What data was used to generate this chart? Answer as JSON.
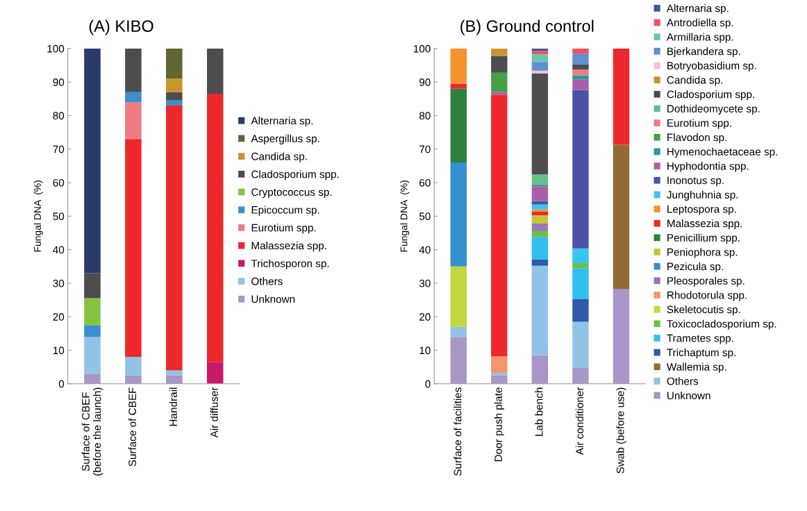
{
  "chart_data": [
    {
      "type": "bar",
      "stacked": true,
      "title": "(A) KIBO",
      "ylabel": "Fungal DNA  (%)",
      "legend": "right",
      "grid": false,
      "categories": [
        "Surface of CBEF\n(before the launch)",
        "Surface of CBEF",
        "Handrail",
        "Air diffuser"
      ],
      "ylim": [
        0,
        100
      ],
      "yticks": [
        0,
        10,
        20,
        30,
        40,
        50,
        60,
        70,
        80,
        90,
        100
      ],
      "series": [
        {
          "name": "Unknown",
          "color": "#a896c8",
          "values": [
            3,
            2.5,
            2.5,
            null
          ]
        },
        {
          "name": "Others",
          "color": "#90c3e6",
          "values": [
            11,
            5.5,
            1.5,
            null
          ]
        },
        {
          "name": "Trichosporon sp.",
          "color": "#c81a6a",
          "values": [
            null,
            null,
            null,
            6.5
          ]
        },
        {
          "name": "Malassezia spp.",
          "color": "#ec282c",
          "values": [
            null,
            65,
            79,
            80
          ]
        },
        {
          "name": "Eurotium spp.",
          "color": "#f07a82",
          "values": [
            null,
            11,
            null,
            null
          ]
        },
        {
          "name": "Epicoccum sp.",
          "color": "#3a8fd0",
          "values": [
            3.5,
            3,
            1.5,
            null
          ]
        },
        {
          "name": "Cryptococcus sp.",
          "color": "#86c440",
          "values": [
            8,
            null,
            null,
            null
          ]
        },
        {
          "name": "Cladosporium spp.",
          "color": "#4d4d4f",
          "values": [
            7.5,
            13,
            2.5,
            13.5
          ]
        },
        {
          "name": "Candida sp.",
          "color": "#c8952e",
          "values": [
            null,
            null,
            4,
            null
          ]
        },
        {
          "name": "Aspergillus sp.",
          "color": "#636434",
          "values": [
            null,
            null,
            9,
            null
          ]
        },
        {
          "name": "Alternaria sp.",
          "color": "#2b3a67",
          "values": [
            67,
            null,
            null,
            null
          ]
        }
      ]
    },
    {
      "type": "bar",
      "stacked": true,
      "title": "(B) Ground control",
      "ylabel": "Fungal DNA  (%)",
      "legend": "right",
      "grid": false,
      "categories": [
        "Surface of facilities",
        "Door push plate",
        "Lab bench",
        "Air conditioner",
        "Swab (before use)"
      ],
      "ylim": [
        0,
        100
      ],
      "yticks": [
        0,
        10,
        20,
        30,
        40,
        50,
        60,
        70,
        80,
        90,
        100
      ],
      "series": [
        {
          "name": "Unknown",
          "color": "#a896c8",
          "values": [
            14,
            2.5,
            8.5,
            4.7,
            28.3
          ]
        },
        {
          "name": "Others",
          "color": "#90c3e6",
          "values": [
            3,
            0.7,
            26.7,
            13.8,
            null
          ]
        },
        {
          "name": "Wallemia sp.",
          "color": "#936a34",
          "values": [
            null,
            null,
            null,
            null,
            43
          ]
        },
        {
          "name": "Trichaptum sp.",
          "color": "#3358a8",
          "values": [
            null,
            null,
            1.8,
            6.7,
            null
          ]
        },
        {
          "name": "Trametes spp.",
          "color": "#30c0ee",
          "values": [
            null,
            null,
            6.8,
            9.3,
            null
          ]
        },
        {
          "name": "Toxicocladosporium sp.",
          "color": "#6cbf4a",
          "values": [
            null,
            null,
            1.7,
            1.5,
            null
          ]
        },
        {
          "name": "Skeletocutis sp.",
          "color": "#c4d83e",
          "values": [
            18,
            null,
            null,
            null,
            null
          ]
        },
        {
          "name": "Rhodotorula spp.",
          "color": "#f4956e",
          "values": [
            null,
            5,
            null,
            null,
            null
          ]
        },
        {
          "name": "Pleosporales sp.",
          "color": "#9878b8",
          "values": [
            null,
            null,
            2.3,
            null,
            null
          ]
        },
        {
          "name": "Pezicula sp.",
          "color": "#3590d0",
          "values": [
            31,
            null,
            null,
            null,
            null
          ]
        },
        {
          "name": "Peniophora sp.",
          "color": "#c8c43a",
          "values": [
            null,
            null,
            2.5,
            null,
            null
          ]
        },
        {
          "name": "Penicillium spp.",
          "color": "#2e8040",
          "values": [
            22,
            null,
            null,
            null,
            null
          ]
        },
        {
          "name": "Malassezia spp.",
          "color": "#ec282c",
          "values": [
            1.5,
            78,
            1,
            null,
            28.7
          ]
        },
        {
          "name": "Leptospora sp.",
          "color": "#f5922e",
          "values": [
            10.5,
            null,
            0.7,
            null,
            null
          ]
        },
        {
          "name": "Junghuhnia sp.",
          "color": "#38c4f0",
          "values": [
            null,
            null,
            1.5,
            4.4,
            null
          ]
        },
        {
          "name": "Inonotus sp.",
          "color": "#4b52a6",
          "values": [
            null,
            null,
            1,
            47.2,
            null
          ]
        },
        {
          "name": "Hyphodontia spp.",
          "color": "#a95fa8",
          "values": [
            null,
            0.8,
            4.4,
            3.1,
            null
          ]
        },
        {
          "name": "Hymenochaetaceae sp.",
          "color": "#2a9a96",
          "values": [
            null,
            null,
            0.6,
            1.3,
            null
          ]
        },
        {
          "name": "Flavodon sp.",
          "color": "#46a046",
          "values": [
            null,
            5.8,
            null,
            null,
            null
          ]
        },
        {
          "name": "Eurotium spp.",
          "color": "#f07a82",
          "values": [
            null,
            null,
            null,
            1.7,
            null
          ]
        },
        {
          "name": "Dothideomycete sp.",
          "color": "#66c08a",
          "values": [
            null,
            null,
            3,
            null,
            null
          ]
        },
        {
          "name": "Cladosporium spp.",
          "color": "#4d4d4f",
          "values": [
            null,
            5,
            30.1,
            1.6,
            null
          ]
        },
        {
          "name": "Candida sp.",
          "color": "#c8952e",
          "values": [
            null,
            2.2,
            null,
            null,
            null
          ]
        },
        {
          "name": "Botryobasidium sp.",
          "color": "#f2c0dc",
          "values": [
            null,
            null,
            0.8,
            null,
            null
          ]
        },
        {
          "name": "Bjerkandera sp.",
          "color": "#6090cf",
          "values": [
            null,
            null,
            2.6,
            3.2,
            null
          ]
        },
        {
          "name": "Armillaria spp.",
          "color": "#66c6b0",
          "values": [
            null,
            null,
            2.3,
            null,
            null
          ]
        },
        {
          "name": "Antrodiella sp.",
          "color": "#f05060",
          "values": [
            null,
            null,
            1,
            1.5,
            null
          ]
        },
        {
          "name": "Alternaria sp.",
          "color": "#3b5a91",
          "values": [
            null,
            null,
            0.7,
            null,
            null
          ]
        }
      ]
    }
  ]
}
